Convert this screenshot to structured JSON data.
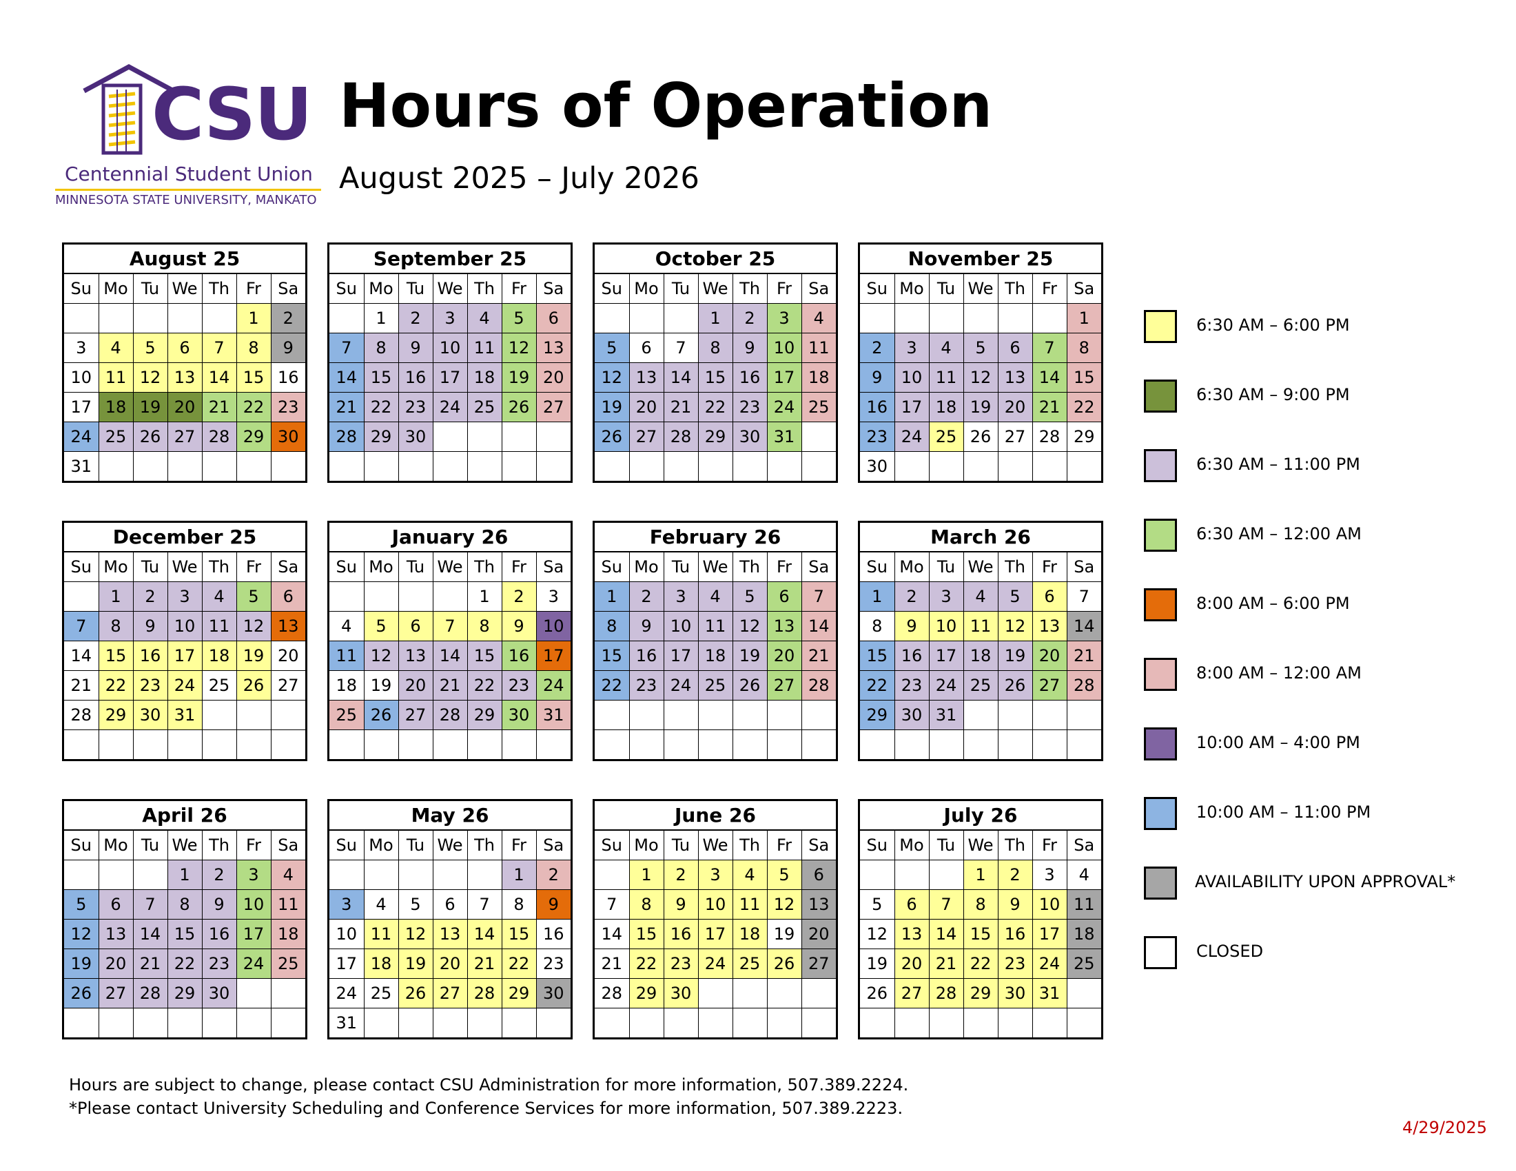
{
  "header": {
    "logo_text": "CSU",
    "logo_name": "Centennial Student Union",
    "logo_university": "MINNESOTA STATE UNIVERSITY, MANKATO",
    "title": "Hours of Operation",
    "subtitle": "August 2025 – July 2026"
  },
  "weekday_labels": [
    "Su",
    "Mo",
    "Tu",
    "We",
    "Th",
    "Fr",
    "Sa"
  ],
  "colors": {
    "Y": "#ffff99",
    "G": "#77933c",
    "L": "#ccc0da",
    "N": "#b3dc85",
    "O": "#e46c0a",
    "P": "#e6b9b8",
    "V": "#8064a2",
    "B": "#8db4e2",
    "A": "#a6a6a6",
    "C": "#ffffff"
  },
  "legend": [
    {
      "code": "Y",
      "label": "6:30 AM – 6:00 PM"
    },
    {
      "code": "G",
      "label": "6:30 AM – 9:00 PM"
    },
    {
      "code": "L",
      "label": "6:30 AM – 11:00 PM"
    },
    {
      "code": "N",
      "label": "6:30 AM – 12:00 AM"
    },
    {
      "code": "O",
      "label": "8:00 AM – 6:00 PM"
    },
    {
      "code": "P",
      "label": "8:00 AM – 12:00 AM"
    },
    {
      "code": "V",
      "label": "10:00 AM – 4:00 PM"
    },
    {
      "code": "B",
      "label": "10:00 AM – 11:00 PM"
    },
    {
      "code": "A",
      "label": "AVAILABILITY UPON APPROVAL*"
    },
    {
      "code": "C",
      "label": "CLOSED"
    }
  ],
  "months": [
    {
      "name": "August 25",
      "start": 5,
      "days": 31,
      "codes": "YAWYYYYYAWYYYYYWWGGGNNPBLLLLNOW"
    },
    {
      "name": "September 25",
      "start": 1,
      "days": 30,
      "codes": "WLLLNPBLLLLNPBLLLLNPBLLLLNPBLL"
    },
    {
      "name": "October 25",
      "start": 3,
      "days": 31,
      "codes": "LLNPBWWLLNPBLLLLNPBLLLLNPBLLLLN"
    },
    {
      "name": "November 25",
      "start": 6,
      "days": 30,
      "codes": "PBLLLLNPBLLLLNPBLLLLNPBLYWWWWW"
    },
    {
      "name": "December 25",
      "start": 1,
      "days": 31,
      "codes": "LLLLNPBLLLLLOWYYYYYWWYYYWYWWYYY"
    },
    {
      "name": "January 26",
      "start": 4,
      "days": 31,
      "codes": "WYWWYYYYYVBLLLLNOWWLLLLNPBLLLNP"
    },
    {
      "name": "February 26",
      "start": 0,
      "days": 28,
      "codes": "BLLLLNPBLLLLNPBLLLLNPBLLLLNP"
    },
    {
      "name": "March 26",
      "start": 0,
      "days": 31,
      "codes": "BLLLLYWWYYYYYABLLLLNPBLLLLNPBLL"
    },
    {
      "name": "April 26",
      "start": 3,
      "days": 30,
      "codes": "LLNPBLLLLNPBLLLLNPBLLLLNPBLLLL"
    },
    {
      "name": "May 26",
      "start": 5,
      "days": 31,
      "codes": "LPBWWWWWOWYYYYYWWYYYYYWWWYYYYAW"
    },
    {
      "name": "June 26",
      "start": 1,
      "days": 30,
      "codes": "YYYYYAWYYYYYAWYYYYWAWYYYYYAWYY"
    },
    {
      "name": "July 26",
      "start": 3,
      "days": 31,
      "codes": "YYWWWYYYYYAWYYYYYAWYYYYYAWYYYYY"
    }
  ],
  "footnotes": {
    "line1": "Hours are subject to change, please contact CSU Administration for more information, 507.389.2224.",
    "line2": "*Please contact University Scheduling and Conference Services for more information, 507.389.2223."
  },
  "revision_date": "4/29/2025"
}
